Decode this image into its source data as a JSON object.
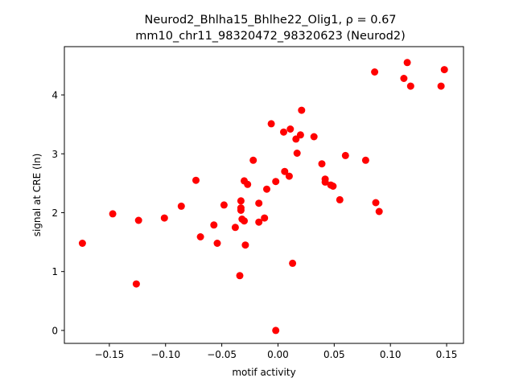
{
  "chart_data": {
    "type": "scatter",
    "title_line1": "Neurod2_Bhlha15_Bhlhe22_Olig1, ρ = 0.67",
    "title_line2": "mm10_chr11_98320472_98320623 (Neurod2)",
    "xlabel": "motif activity",
    "ylabel": "signal at CRE (ln)",
    "xlim": [
      -0.19,
      0.165
    ],
    "ylim": [
      -0.22,
      4.82
    ],
    "x_ticks": [
      -0.15,
      -0.1,
      -0.05,
      0.0,
      0.05,
      0.1,
      0.15
    ],
    "x_tick_labels": [
      "−0.15",
      "−0.10",
      "−0.05",
      "0.00",
      "0.05",
      "0.10",
      "0.15"
    ],
    "y_ticks": [
      0,
      1,
      2,
      3,
      4
    ],
    "y_tick_labels": [
      "0",
      "1",
      "2",
      "3",
      "4"
    ],
    "grid": false,
    "marker_color": "#ff0000",
    "points": [
      {
        "x": -0.174,
        "y": 1.48
      },
      {
        "x": -0.147,
        "y": 1.98
      },
      {
        "x": -0.126,
        "y": 0.79
      },
      {
        "x": -0.124,
        "y": 1.87
      },
      {
        "x": -0.101,
        "y": 1.91
      },
      {
        "x": -0.086,
        "y": 2.11
      },
      {
        "x": -0.073,
        "y": 2.55
      },
      {
        "x": -0.069,
        "y": 1.59
      },
      {
        "x": -0.057,
        "y": 1.79
      },
      {
        "x": -0.054,
        "y": 1.48
      },
      {
        "x": -0.048,
        "y": 2.13
      },
      {
        "x": -0.038,
        "y": 1.75
      },
      {
        "x": -0.034,
        "y": 0.93
      },
      {
        "x": -0.033,
        "y": 2.2
      },
      {
        "x": -0.033,
        "y": 2.08
      },
      {
        "x": -0.033,
        "y": 2.04
      },
      {
        "x": -0.032,
        "y": 1.89
      },
      {
        "x": -0.03,
        "y": 2.54
      },
      {
        "x": -0.03,
        "y": 1.86
      },
      {
        "x": -0.029,
        "y": 1.45
      },
      {
        "x": -0.027,
        "y": 2.48
      },
      {
        "x": -0.022,
        "y": 2.89
      },
      {
        "x": -0.017,
        "y": 2.16
      },
      {
        "x": -0.017,
        "y": 1.84
      },
      {
        "x": -0.012,
        "y": 1.91
      },
      {
        "x": -0.01,
        "y": 2.4
      },
      {
        "x": -0.006,
        "y": 3.51
      },
      {
        "x": -0.002,
        "y": 2.53
      },
      {
        "x": -0.002,
        "y": 0.0
      },
      {
        "x": 0.005,
        "y": 3.37
      },
      {
        "x": 0.006,
        "y": 2.7
      },
      {
        "x": 0.01,
        "y": 2.62
      },
      {
        "x": 0.011,
        "y": 3.42
      },
      {
        "x": 0.013,
        "y": 1.14
      },
      {
        "x": 0.016,
        "y": 3.25
      },
      {
        "x": 0.017,
        "y": 3.01
      },
      {
        "x": 0.02,
        "y": 3.32
      },
      {
        "x": 0.021,
        "y": 3.74
      },
      {
        "x": 0.032,
        "y": 3.29
      },
      {
        "x": 0.039,
        "y": 2.83
      },
      {
        "x": 0.042,
        "y": 2.57
      },
      {
        "x": 0.042,
        "y": 2.52
      },
      {
        "x": 0.047,
        "y": 2.47
      },
      {
        "x": 0.049,
        "y": 2.45
      },
      {
        "x": 0.055,
        "y": 2.22
      },
      {
        "x": 0.06,
        "y": 2.97
      },
      {
        "x": 0.078,
        "y": 2.89
      },
      {
        "x": 0.086,
        "y": 4.39
      },
      {
        "x": 0.087,
        "y": 2.17
      },
      {
        "x": 0.09,
        "y": 2.02
      },
      {
        "x": 0.112,
        "y": 4.28
      },
      {
        "x": 0.115,
        "y": 4.55
      },
      {
        "x": 0.118,
        "y": 4.15
      },
      {
        "x": 0.145,
        "y": 4.15
      },
      {
        "x": 0.148,
        "y": 4.43
      }
    ]
  }
}
